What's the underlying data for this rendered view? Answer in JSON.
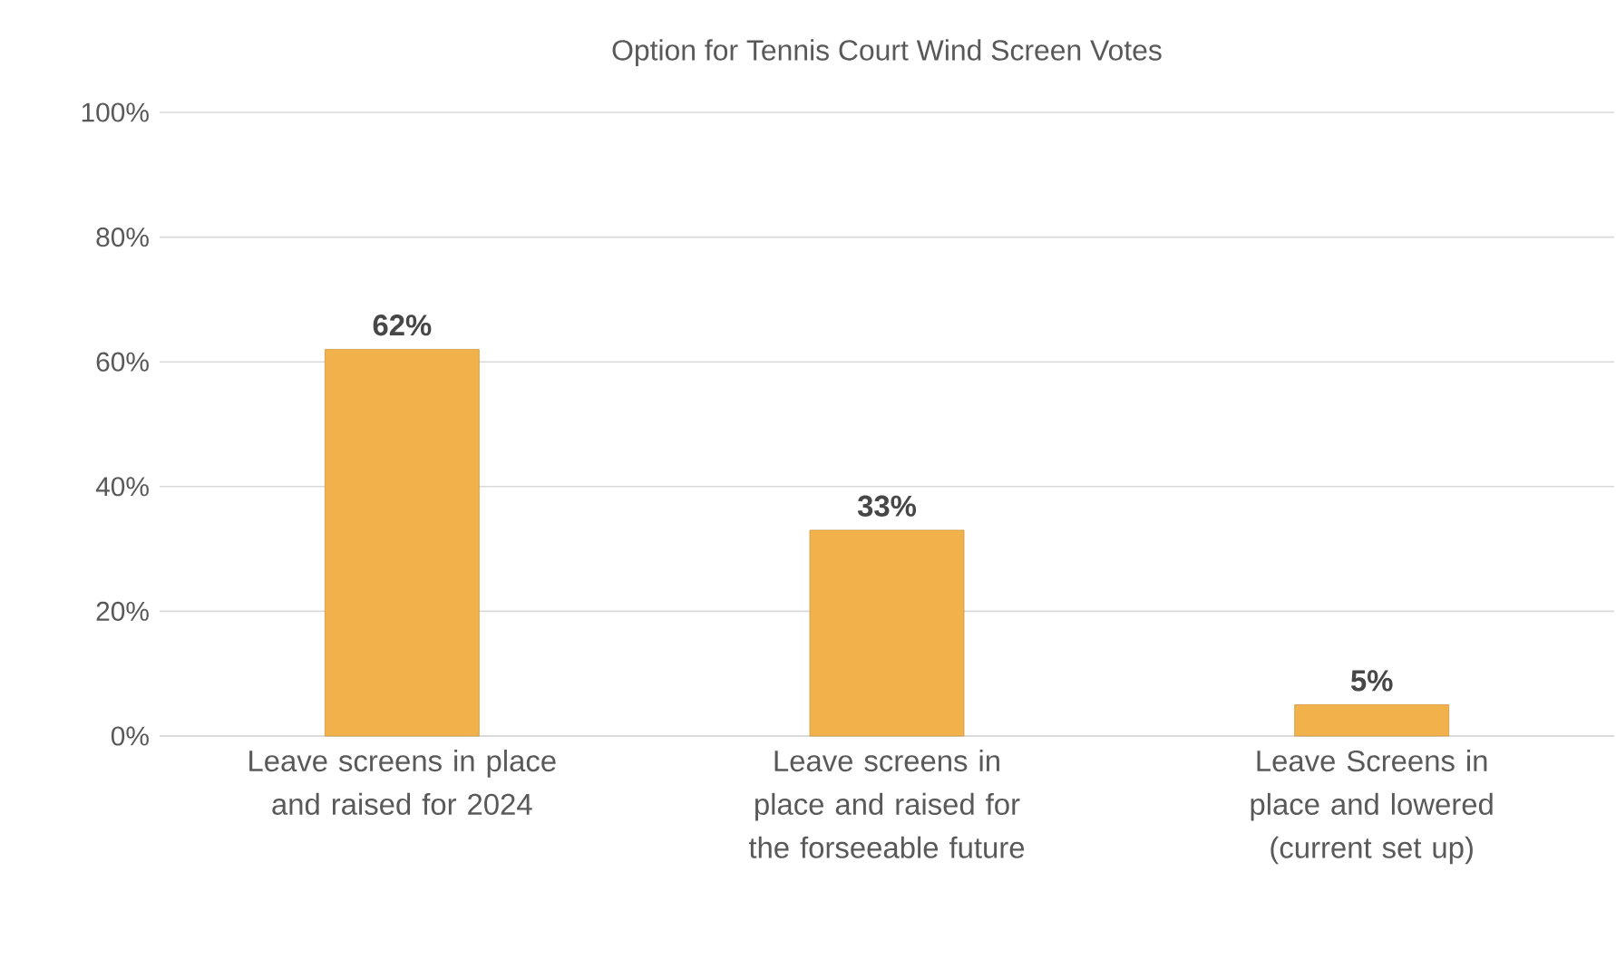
{
  "chart_data": {
    "type": "bar",
    "title": "Option for Tennis Court Wind Screen Votes",
    "categories": [
      "Leave screens in place and raised for 2024",
      "Leave screens in place and raised for the forseeable future",
      "Leave Screens in place and lowered (current set up)"
    ],
    "values": [
      62,
      33,
      5
    ],
    "value_labels": [
      "62%",
      "33%",
      "5%"
    ],
    "color": "#f2b24b",
    "ylim": [
      0,
      100
    ],
    "yticks": [
      {
        "value": 0,
        "label": "0%"
      },
      {
        "value": 20,
        "label": "20%"
      },
      {
        "value": 40,
        "label": "40%"
      },
      {
        "value": 60,
        "label": "60%"
      },
      {
        "value": 80,
        "label": "80%"
      },
      {
        "value": 100,
        "label": "100%"
      }
    ],
    "grid": "y"
  }
}
